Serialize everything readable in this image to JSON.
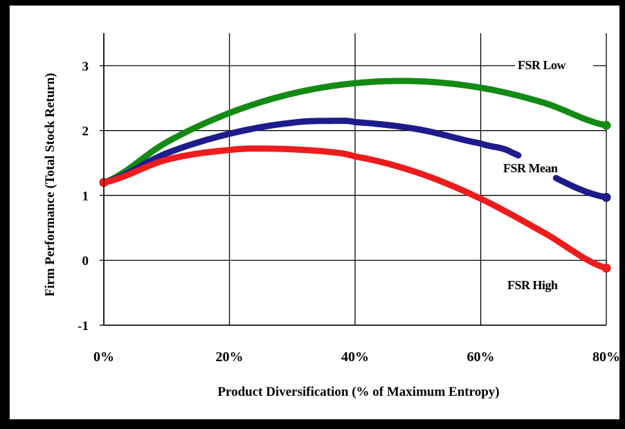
{
  "chart_data": {
    "type": "line",
    "title": "",
    "xlabel": "Product Diversification (% of Maximum Entropy)",
    "ylabel": "Firm Performance  (Total Stock Return)",
    "xlim": [
      0,
      80
    ],
    "ylim": [
      -1,
      3.5
    ],
    "x_ticks": [
      "0%",
      "20%",
      "40%",
      "60%",
      "80%"
    ],
    "x_tick_values": [
      0,
      20,
      40,
      60,
      80
    ],
    "y_ticks": [
      "-1",
      "0",
      "1",
      "2",
      "3"
    ],
    "y_tick_values": [
      -1,
      0,
      1,
      2,
      3
    ],
    "grid": true,
    "series": [
      {
        "name": "FSR Low",
        "color": "#138a13",
        "x": [
          0,
          10,
          20,
          30,
          40,
          50,
          60,
          70,
          80
        ],
        "values": [
          1.2,
          1.82,
          2.27,
          2.57,
          2.73,
          2.76,
          2.66,
          2.43,
          2.08
        ]
      },
      {
        "name": "FSR Mean",
        "color": "#1c1c8c",
        "x": [
          0,
          10,
          20,
          30,
          37.5,
          40,
          50,
          60,
          65,
          73,
          80
        ],
        "values": [
          1.2,
          1.65,
          1.95,
          2.12,
          2.15,
          2.13,
          2.02,
          1.8,
          1.66,
          1.22,
          0.97
        ],
        "gap": [
          66,
          72
        ]
      },
      {
        "name": "FSR High",
        "color": "#ee1c1c",
        "x": [
          0,
          10,
          20,
          27,
          35,
          40,
          50,
          60,
          70,
          80
        ],
        "values": [
          1.2,
          1.55,
          1.7,
          1.72,
          1.68,
          1.6,
          1.35,
          0.95,
          0.43,
          -0.12
        ]
      }
    ],
    "legend": "inline labels at right"
  }
}
